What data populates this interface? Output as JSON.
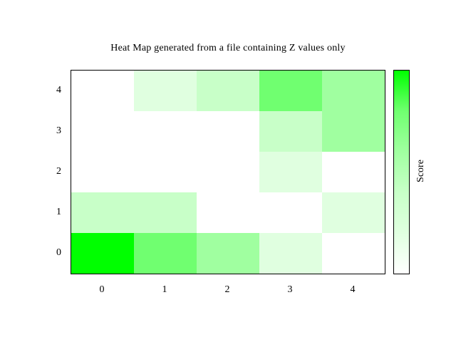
{
  "title": "Heat Map generated from a file containing Z values only",
  "chart_data": {
    "type": "heatmap",
    "title": "Heat Map generated from a file containing Z values only",
    "x": [
      0,
      1,
      2,
      3,
      4
    ],
    "y": [
      0,
      1,
      2,
      3,
      4
    ],
    "z_rows_y0_to_y4": [
      [
        5,
        4,
        3,
        1,
        0
      ],
      [
        2,
        2,
        0,
        0,
        1
      ],
      [
        0,
        0,
        0,
        1,
        0
      ],
      [
        0,
        0,
        0,
        2,
        3
      ],
      [
        0,
        1,
        2,
        4,
        3
      ]
    ],
    "xtick_labels": [
      "0",
      "1",
      "2",
      "3",
      "4"
    ],
    "ytick_labels": [
      "0",
      "1",
      "2",
      "3",
      "4"
    ],
    "xrange": [
      -0.5,
      4.5
    ],
    "yrange": [
      -0.5,
      4.5
    ],
    "cbrange": [
      0,
      5
    ],
    "cblabel": "Score",
    "grid": false,
    "legend": false,
    "tick_marks": "none",
    "colorbar_ticks": "none",
    "palette": {
      "type": "white-to-green",
      "stops": [
        {
          "z": 0,
          "color": "#ffffff"
        },
        {
          "z": 1,
          "color": "#e0ffe0"
        },
        {
          "z": 2,
          "color": "#c8ffc8"
        },
        {
          "z": 3,
          "color": "#a0ffa0"
        },
        {
          "z": 4,
          "color": "#70ff70"
        },
        {
          "z": 5,
          "color": "#00ff00"
        }
      ]
    }
  }
}
